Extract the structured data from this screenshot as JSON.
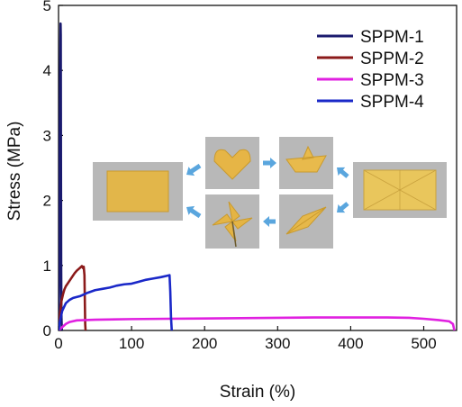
{
  "chart_data": {
    "type": "line",
    "title": "",
    "xlabel": "Strain (%)",
    "ylabel": "Stress (MPa)",
    "xlim": [
      0,
      545
    ],
    "ylim": [
      0,
      5
    ],
    "xticks": [
      0,
      100,
      200,
      300,
      400,
      500
    ],
    "yticks": [
      0,
      1,
      2,
      3,
      4,
      5
    ],
    "grid": false,
    "legend_position": "top-right",
    "series": [
      {
        "name": "SPPM-1",
        "color": "#1a1a6e",
        "points": [
          [
            0,
            0
          ],
          [
            0.5,
            0.6
          ],
          [
            1,
            1.6
          ],
          [
            1.6,
            2.8
          ],
          [
            2.1,
            3.8
          ],
          [
            2.5,
            4.45
          ],
          [
            2.8,
            4.72
          ],
          [
            3.05,
            4.55
          ],
          [
            3.3,
            2.6
          ],
          [
            3.6,
            1.0
          ],
          [
            4.0,
            0.2
          ],
          [
            4.6,
            0
          ]
        ]
      },
      {
        "name": "SPPM-2",
        "color": "#8b1a1a",
        "points": [
          [
            0,
            0
          ],
          [
            2,
            0.25
          ],
          [
            4,
            0.45
          ],
          [
            6,
            0.55
          ],
          [
            8,
            0.63
          ],
          [
            10,
            0.68
          ],
          [
            13,
            0.73
          ],
          [
            16,
            0.78
          ],
          [
            19,
            0.83
          ],
          [
            22,
            0.88
          ],
          [
            25,
            0.92
          ],
          [
            28,
            0.95
          ],
          [
            30,
            0.97
          ],
          [
            32,
            0.99
          ],
          [
            33.5,
            0.96
          ],
          [
            34.5,
            0.98
          ],
          [
            35.5,
            0.85
          ],
          [
            36,
            0.45
          ],
          [
            36.5,
            0.1
          ],
          [
            37,
            0
          ]
        ]
      },
      {
        "name": "SPPM-3",
        "color": "#e020e0",
        "points": [
          [
            0,
            0
          ],
          [
            5,
            0.05
          ],
          [
            10,
            0.1
          ],
          [
            15,
            0.13
          ],
          [
            25,
            0.155
          ],
          [
            50,
            0.165
          ],
          [
            100,
            0.175
          ],
          [
            150,
            0.18
          ],
          [
            200,
            0.185
          ],
          [
            250,
            0.19
          ],
          [
            300,
            0.195
          ],
          [
            350,
            0.2
          ],
          [
            400,
            0.2
          ],
          [
            450,
            0.2
          ],
          [
            480,
            0.195
          ],
          [
            500,
            0.18
          ],
          [
            520,
            0.16
          ],
          [
            535,
            0.14
          ],
          [
            540,
            0.1
          ],
          [
            542,
            0
          ]
        ]
      },
      {
        "name": "SPPM-4",
        "color": "#1a28c8",
        "points": [
          [
            0,
            0
          ],
          [
            2,
            0.15
          ],
          [
            5,
            0.3
          ],
          [
            10,
            0.42
          ],
          [
            15,
            0.47
          ],
          [
            20,
            0.5
          ],
          [
            30,
            0.53
          ],
          [
            40,
            0.58
          ],
          [
            50,
            0.62
          ],
          [
            60,
            0.64
          ],
          [
            70,
            0.66
          ],
          [
            80,
            0.69
          ],
          [
            90,
            0.71
          ],
          [
            100,
            0.72
          ],
          [
            110,
            0.75
          ],
          [
            120,
            0.78
          ],
          [
            130,
            0.8
          ],
          [
            140,
            0.82
          ],
          [
            148,
            0.84
          ],
          [
            152,
            0.85
          ],
          [
            153,
            0.6
          ],
          [
            154,
            0.2
          ],
          [
            155,
            0
          ]
        ]
      }
    ]
  },
  "inset": {
    "photos": [
      {
        "name": "sheet-unfolded",
        "color": "#e2b64a"
      },
      {
        "name": "heart",
        "color": "#e6b546"
      },
      {
        "name": "boat",
        "color": "#e8ba4c"
      },
      {
        "name": "sheet-creased",
        "color": "#e9c65c"
      },
      {
        "name": "pinwheel",
        "color": "#e4b444"
      },
      {
        "name": "paper-plane",
        "color": "#e6b84a"
      }
    ],
    "arrow_color": "#5aa6de",
    "photo_background": "#b8b8b8"
  }
}
